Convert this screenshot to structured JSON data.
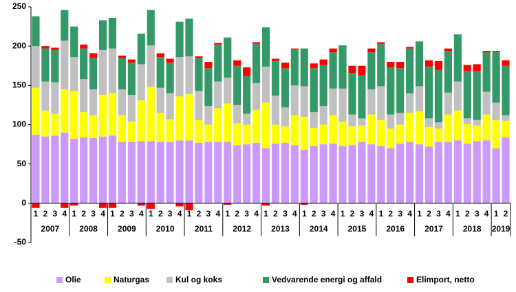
{
  "chart_data": {
    "type": "stacked_bar",
    "categories": [
      "1",
      "2",
      "3",
      "4",
      "1",
      "2",
      "3",
      "4",
      "1",
      "2",
      "3",
      "4",
      "1",
      "2",
      "3",
      "4",
      "1",
      "2",
      "3",
      "4",
      "1",
      "2",
      "3",
      "4",
      "1",
      "2",
      "3",
      "4",
      "1",
      "2",
      "3",
      "4",
      "1",
      "2",
      "3",
      "4",
      "1",
      "2",
      "3",
      "4",
      "1",
      "2",
      "3",
      "4",
      "1",
      "2",
      "3",
      "4",
      "1",
      "2"
    ],
    "years": [
      "2007",
      "2008",
      "2009",
      "2010",
      "2011",
      "2012",
      "2013",
      "2014",
      "2015",
      "2016",
      "2017",
      "2018",
      "2019"
    ],
    "ylim": [
      -50,
      250
    ],
    "yticks": [
      -50,
      0,
      50,
      100,
      150,
      200,
      250
    ],
    "grid": false,
    "legend": "bottom",
    "series": [
      {
        "name": "Olie",
        "color": "#cc99ff",
        "values": [
          87,
          85,
          86,
          90,
          82,
          84,
          83,
          85,
          86,
          78,
          78,
          79,
          79,
          78,
          78,
          80,
          80,
          77,
          78,
          78,
          78,
          74,
          75,
          77,
          70,
          76,
          77,
          74,
          68,
          73,
          75,
          76,
          73,
          74,
          78,
          75,
          73,
          70,
          76,
          78,
          75,
          72,
          78,
          78,
          80,
          76,
          79,
          80,
          70,
          84
        ]
      },
      {
        "name": "Naturgas",
        "color": "#ffff00",
        "values": [
          60,
          33,
          28,
          55,
          61,
          32,
          29,
          53,
          54,
          34,
          26,
          52,
          69,
          37,
          29,
          56,
          59,
          29,
          22,
          43,
          49,
          28,
          25,
          42,
          58,
          24,
          21,
          38,
          42,
          23,
          25,
          36,
          31,
          24,
          21,
          38,
          33,
          25,
          24,
          37,
          42,
          25,
          17,
          35,
          38,
          25,
          20,
          33,
          36,
          21
        ]
      },
      {
        "name": "Kul og koks",
        "color": "#c0c0c0",
        "values": [
          53,
          37,
          40,
          62,
          43,
          42,
          33,
          57,
          57,
          33,
          34,
          46,
          53,
          32,
          33,
          50,
          48,
          37,
          24,
          34,
          33,
          23,
          14,
          34,
          46,
          37,
          24,
          38,
          39,
          20,
          24,
          34,
          42,
          15,
          9,
          32,
          43,
          18,
          15,
          25,
          32,
          11,
          8,
          28,
          37,
          7,
          7,
          29,
          22,
          7
        ]
      },
      {
        "name": "Vedvarende energi og affald",
        "color": "#339966",
        "values": [
          38,
          42,
          41,
          39,
          39,
          39,
          40,
          38,
          39,
          40,
          41,
          39,
          45,
          39,
          39,
          45,
          48,
          42,
          48,
          47,
          51,
          50,
          48,
          50,
          50,
          44,
          50,
          46,
          48,
          56,
          52,
          46,
          55,
          53,
          55,
          47,
          54,
          60,
          57,
          57,
          57,
          66,
          67,
          53,
          60,
          60,
          62,
          50,
          65,
          63
        ]
      },
      {
        "name": "Elimport, netto",
        "color": "#ff0000",
        "values": [
          -6,
          3,
          3,
          -6,
          -3,
          5,
          6,
          -6,
          -6,
          3,
          4,
          -3,
          -7,
          5,
          5,
          -4,
          -9,
          2,
          8,
          2,
          -2,
          7,
          11,
          2,
          -3,
          3,
          7,
          1,
          -2,
          6,
          7,
          5,
          0,
          9,
          12,
          5,
          2,
          7,
          8,
          2,
          0,
          8,
          11,
          3,
          0,
          8,
          9,
          2,
          1,
          7
        ]
      }
    ]
  }
}
